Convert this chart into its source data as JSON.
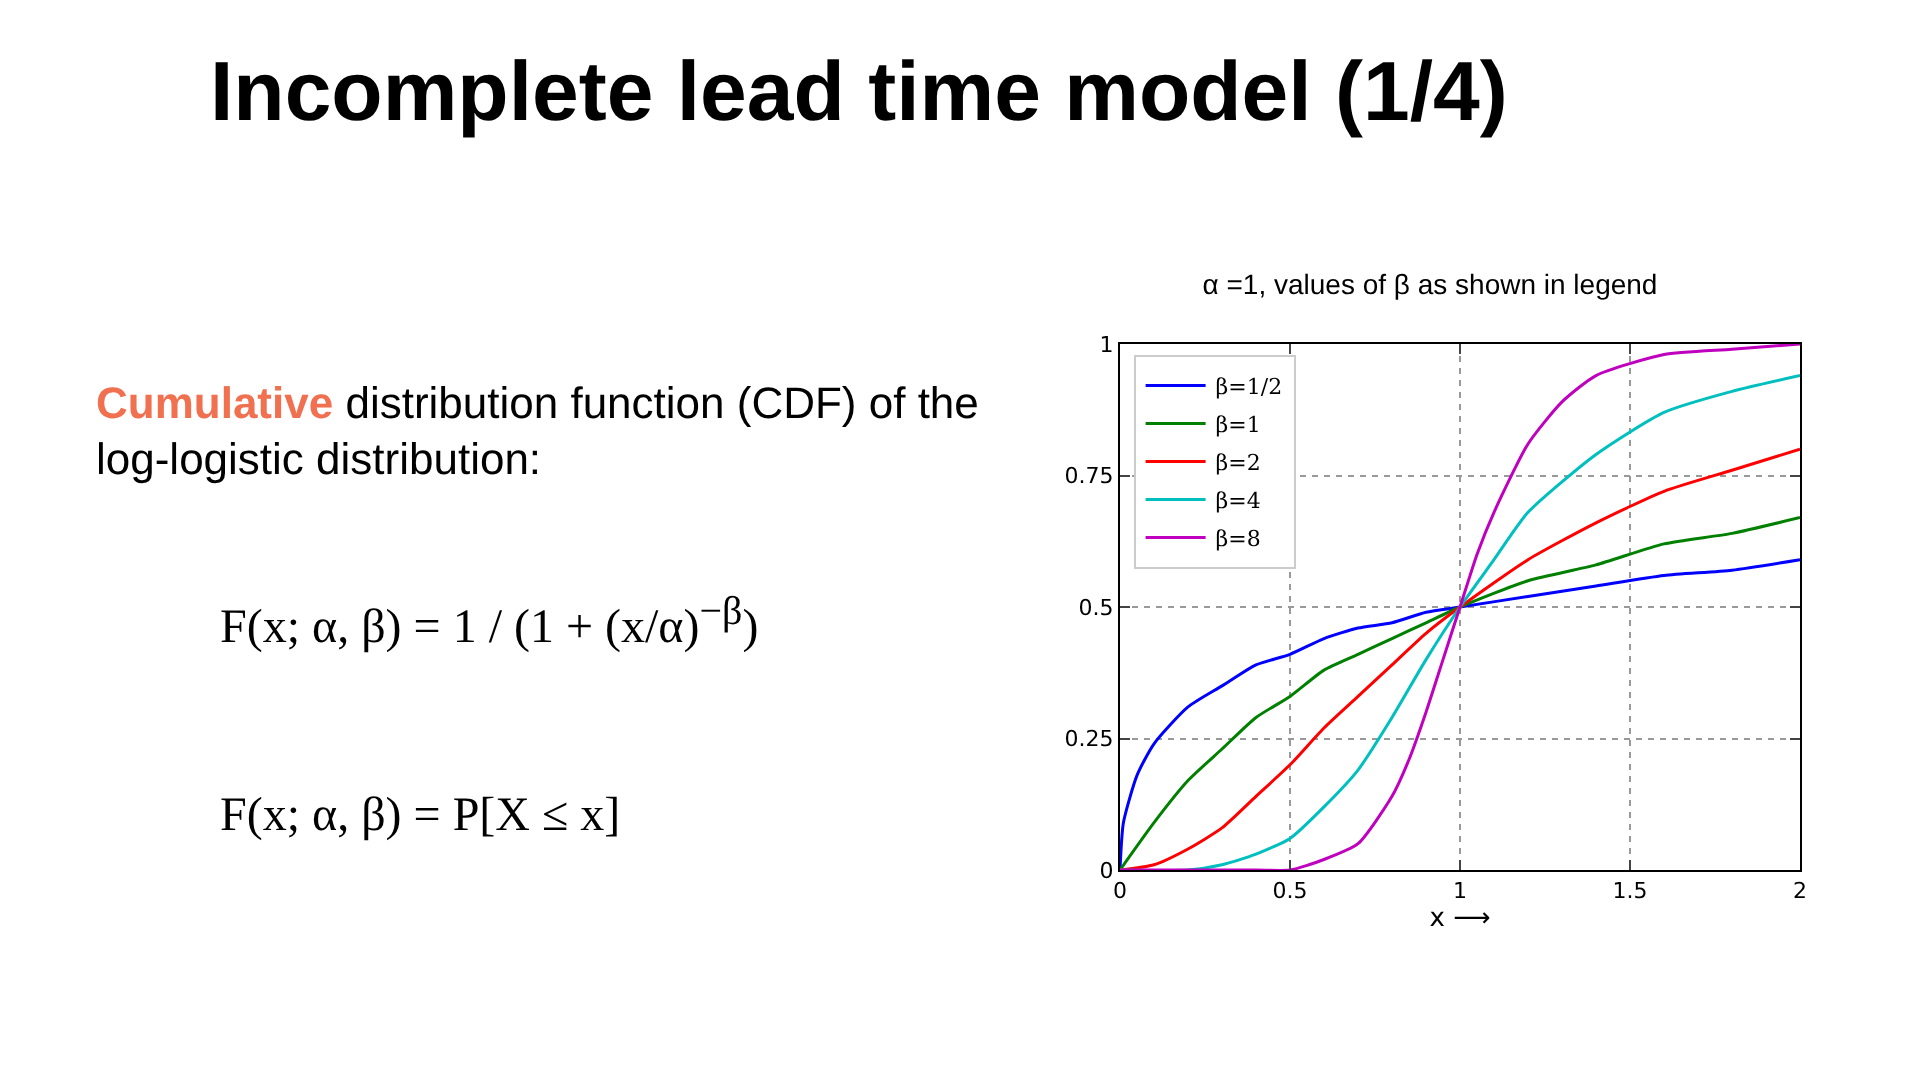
{
  "chart_data": {
    "type": "line",
    "title": "Incomplete lead time model (1/4)",
    "subtitle": "α =1, values of β as shown in legend",
    "xlabel": "x ⟶",
    "annotations": [
      "Cumulative",
      "distribution function (CDF) of the log-logistic distribution:",
      "F(x; α, β) = 1 / (1 + (x/α)$^{−β}$)",
      "F(x; α, β) = P[X ≤ x]"
    ],
    "series": [
      {
        "name": "β=1/2",
        "color": "#0000ff",
        "x": [
          0,
          0.01,
          0.05,
          0.1,
          0.2,
          0.3,
          0.4,
          0.5,
          0.6,
          0.7,
          0.8,
          0.9,
          1,
          1.2,
          1.4,
          1.6,
          1.8,
          2
        ],
        "values": [
          0,
          0.09,
          0.18,
          0.24,
          0.31,
          0.35,
          0.39,
          0.41,
          0.44,
          0.46,
          0.47,
          0.49,
          0.5,
          0.52,
          0.54,
          0.56,
          0.57,
          0.59
        ]
      },
      {
        "name": "β=1",
        "color": "#008000",
        "x": [
          0,
          0.1,
          0.2,
          0.3,
          0.4,
          0.5,
          0.6,
          0.7,
          0.8,
          0.9,
          1,
          1.2,
          1.4,
          1.6,
          1.8,
          2
        ],
        "values": [
          0,
          0.09,
          0.17,
          0.23,
          0.29,
          0.33,
          0.38,
          0.41,
          0.44,
          0.47,
          0.5,
          0.55,
          0.58,
          0.62,
          0.64,
          0.67
        ]
      },
      {
        "name": "β=2",
        "color": "#ff0000",
        "x": [
          0,
          0.1,
          0.2,
          0.3,
          0.4,
          0.5,
          0.6,
          0.7,
          0.8,
          0.9,
          1,
          1.2,
          1.4,
          1.6,
          1.8,
          2
        ],
        "values": [
          0,
          0.01,
          0.04,
          0.08,
          0.14,
          0.2,
          0.27,
          0.33,
          0.39,
          0.45,
          0.5,
          0.59,
          0.66,
          0.72,
          0.76,
          0.8
        ]
      },
      {
        "name": "β=4",
        "color": "#00bfbf",
        "x": [
          0,
          0.2,
          0.3,
          0.4,
          0.5,
          0.6,
          0.7,
          0.8,
          0.9,
          1,
          1.1,
          1.2,
          1.4,
          1.6,
          1.8,
          2
        ],
        "values": [
          0,
          0,
          0.01,
          0.03,
          0.06,
          0.12,
          0.19,
          0.29,
          0.4,
          0.5,
          0.59,
          0.68,
          0.79,
          0.87,
          0.91,
          0.94
        ]
      },
      {
        "name": "β=8",
        "color": "#bf00bf",
        "x": [
          0,
          0.4,
          0.5,
          0.6,
          0.7,
          0.8,
          0.85,
          0.9,
          0.95,
          1,
          1.05,
          1.1,
          1.2,
          1.3,
          1.4,
          1.6,
          1.8,
          2
        ],
        "values": [
          0,
          0,
          0,
          0.02,
          0.05,
          0.14,
          0.21,
          0.3,
          0.4,
          0.5,
          0.6,
          0.68,
          0.81,
          0.89,
          0.94,
          0.98,
          0.99,
          1
        ]
      }
    ],
    "xlim": [
      0,
      2
    ],
    "xticks": [
      0,
      0.5,
      1,
      1.5,
      2
    ],
    "ylim": [
      0,
      1
    ],
    "yticks": [
      0,
      0.25,
      0.5,
      0.75,
      1
    ],
    "grid": true,
    "legend": "top left",
    "line_style": "solid"
  }
}
